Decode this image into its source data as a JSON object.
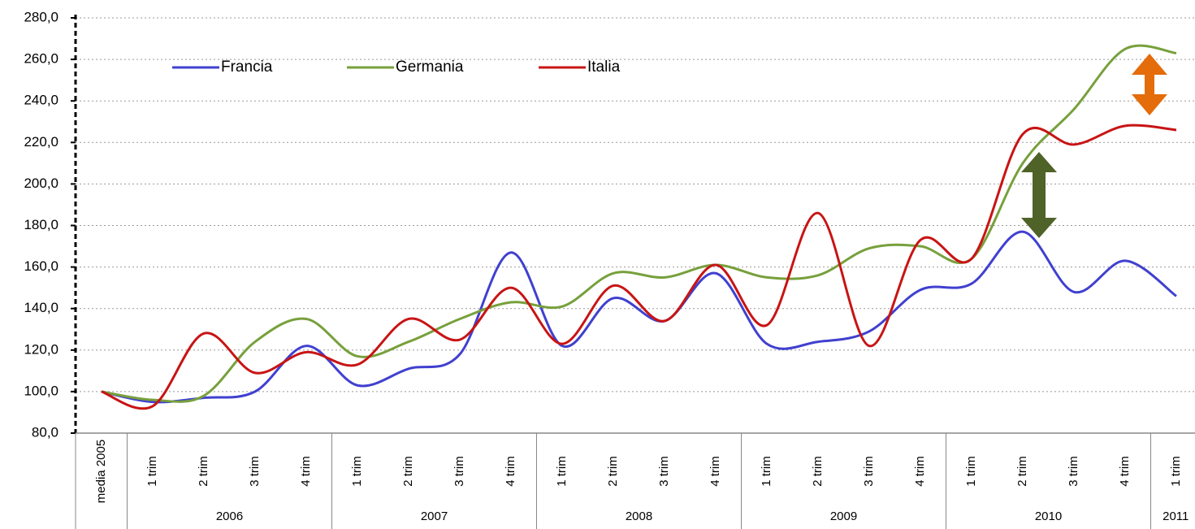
{
  "chart_data": {
    "type": "line",
    "categories": [
      "media 2005",
      "1 trim",
      "2 trim",
      "3 trim",
      "4 trim",
      "1 trim",
      "2 trim",
      "3 trim",
      "4 trim",
      "1 trim",
      "2 trim",
      "3 trim",
      "4 trim",
      "1 trim",
      "2 trim",
      "3 trim",
      "4 trim",
      "1 trim",
      "2 trim",
      "3 trim",
      "4 trim",
      "1 trim"
    ],
    "x_groups": [
      "2006",
      "2007",
      "2008",
      "2009",
      "2010",
      "2011"
    ],
    "series": [
      {
        "name": "Francia",
        "color": "#4040d0",
        "values": [
          100,
          95,
          97,
          100,
          122,
          103,
          111,
          118,
          167,
          122,
          145,
          134,
          157,
          123,
          124,
          129,
          149,
          152,
          177,
          148,
          163,
          146
        ]
      },
      {
        "name": "Germania",
        "color": "#77a03c",
        "values": [
          100,
          96,
          98,
          124,
          135,
          117,
          124,
          135,
          143,
          141,
          157,
          155,
          161,
          155,
          156,
          169,
          170,
          164,
          210,
          236,
          265,
          263
        ]
      },
      {
        "name": "Italia",
        "color": "#c81414",
        "values": [
          100,
          93,
          128,
          109,
          119,
          113,
          135,
          125,
          150,
          123,
          151,
          134,
          161,
          132,
          186,
          122,
          173,
          164,
          224,
          219,
          228,
          226
        ]
      }
    ],
    "ylim": [
      80,
      280
    ],
    "yticks": [
      {
        "value": 80,
        "label": "80,0"
      },
      {
        "value": 100,
        "label": "100,0"
      },
      {
        "value": 120,
        "label": "120,0"
      },
      {
        "value": 140,
        "label": "140,0"
      },
      {
        "value": 160,
        "label": "160,0"
      },
      {
        "value": 180,
        "label": "180,0"
      },
      {
        "value": 200,
        "label": "200,0"
      },
      {
        "value": 220,
        "label": "220,0"
      },
      {
        "value": 240,
        "label": "240,0"
      },
      {
        "value": 260,
        "label": "260,0"
      },
      {
        "value": 280,
        "label": "280,0"
      }
    ],
    "grid": true,
    "legend": "top-left"
  }
}
